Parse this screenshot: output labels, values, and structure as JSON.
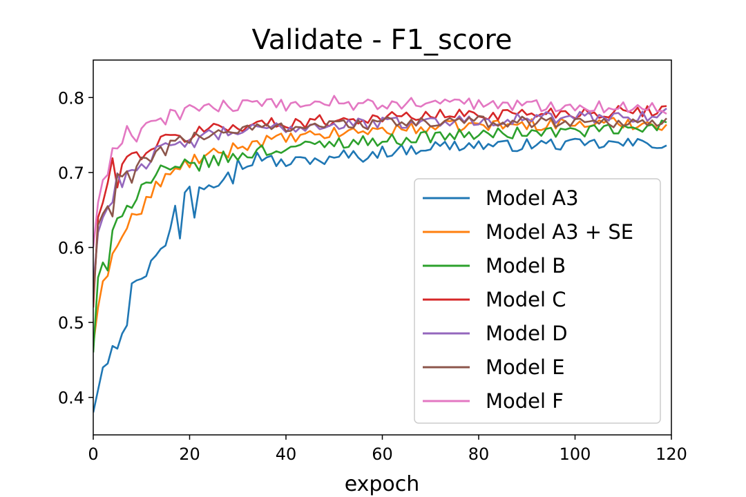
{
  "chart_data": {
    "type": "line",
    "title": "Validate - F1_score",
    "xlabel": "expoch",
    "ylabel": "",
    "xlim": [
      0,
      120
    ],
    "ylim": [
      0.35,
      0.85
    ],
    "xticks": [
      0,
      20,
      40,
      60,
      80,
      100,
      120
    ],
    "yticks": [
      0.4,
      0.5,
      0.6,
      0.7,
      0.8
    ],
    "grid": false,
    "legend_position": "center-right",
    "series": [
      {
        "name": "Model A3",
        "color": "#1f77b4",
        "keypoints": [
          [
            0,
            0.38
          ],
          [
            1,
            0.41
          ],
          [
            2,
            0.44
          ],
          [
            3,
            0.45
          ],
          [
            4,
            0.478
          ],
          [
            5,
            0.472
          ],
          [
            6,
            0.492
          ],
          [
            7,
            0.496
          ],
          [
            8,
            0.545
          ],
          [
            9,
            0.563
          ],
          [
            10,
            0.552
          ],
          [
            12,
            0.585
          ],
          [
            14,
            0.605
          ],
          [
            15,
            0.598
          ],
          [
            17,
            0.65
          ],
          [
            18,
            0.615
          ],
          [
            19,
            0.67
          ],
          [
            20,
            0.68
          ],
          [
            21,
            0.647
          ],
          [
            22,
            0.682
          ],
          [
            24,
            0.685
          ],
          [
            26,
            0.69
          ],
          [
            28,
            0.71
          ],
          [
            29,
            0.695
          ],
          [
            30,
            0.72
          ],
          [
            32,
            0.703
          ],
          [
            34,
            0.726
          ],
          [
            36,
            0.717
          ],
          [
            40,
            0.712
          ],
          [
            45,
            0.718
          ],
          [
            50,
            0.715
          ],
          [
            52,
            0.725
          ],
          [
            55,
            0.72
          ],
          [
            60,
            0.728
          ],
          [
            65,
            0.73
          ],
          [
            70,
            0.735
          ],
          [
            75,
            0.736
          ],
          [
            80,
            0.737
          ],
          [
            85,
            0.735
          ],
          [
            90,
            0.737
          ],
          [
            95,
            0.738
          ],
          [
            100,
            0.737
          ],
          [
            105,
            0.738
          ],
          [
            110,
            0.738
          ],
          [
            115,
            0.739
          ],
          [
            119,
            0.738
          ]
        ]
      },
      {
        "name": "Model A3 + SE",
        "color": "#ff7f0e",
        "keypoints": [
          [
            0,
            0.47
          ],
          [
            1,
            0.52
          ],
          [
            2,
            0.555
          ],
          [
            3,
            0.57
          ],
          [
            4,
            0.595
          ],
          [
            5,
            0.61
          ],
          [
            6,
            0.612
          ],
          [
            7,
            0.625
          ],
          [
            8,
            0.645
          ],
          [
            9,
            0.64
          ],
          [
            10,
            0.65
          ],
          [
            12,
            0.67
          ],
          [
            14,
            0.69
          ],
          [
            16,
            0.695
          ],
          [
            18,
            0.705
          ],
          [
            20,
            0.715
          ],
          [
            22,
            0.718
          ],
          [
            25,
            0.722
          ],
          [
            28,
            0.728
          ],
          [
            30,
            0.735
          ],
          [
            35,
            0.742
          ],
          [
            40,
            0.745
          ],
          [
            45,
            0.748
          ],
          [
            50,
            0.752
          ],
          [
            55,
            0.755
          ],
          [
            60,
            0.757
          ],
          [
            65,
            0.758
          ],
          [
            70,
            0.76
          ],
          [
            75,
            0.762
          ],
          [
            80,
            0.763
          ],
          [
            85,
            0.763
          ],
          [
            90,
            0.764
          ],
          [
            95,
            0.765
          ],
          [
            100,
            0.765
          ],
          [
            105,
            0.765
          ],
          [
            110,
            0.766
          ],
          [
            115,
            0.765
          ],
          [
            119,
            0.764
          ]
        ]
      },
      {
        "name": "Model B",
        "color": "#2ca02c",
        "keypoints": [
          [
            0,
            0.46
          ],
          [
            1,
            0.56
          ],
          [
            2,
            0.58
          ],
          [
            3,
            0.56
          ],
          [
            4,
            0.62
          ],
          [
            5,
            0.648
          ],
          [
            6,
            0.65
          ],
          [
            7,
            0.655
          ],
          [
            8,
            0.66
          ],
          [
            10,
            0.68
          ],
          [
            12,
            0.69
          ],
          [
            14,
            0.7
          ],
          [
            16,
            0.7
          ],
          [
            18,
            0.705
          ],
          [
            20,
            0.71
          ],
          [
            22,
            0.712
          ],
          [
            25,
            0.715
          ],
          [
            28,
            0.72
          ],
          [
            30,
            0.72
          ],
          [
            32,
            0.725
          ],
          [
            35,
            0.73
          ],
          [
            38,
            0.728
          ],
          [
            40,
            0.735
          ],
          [
            45,
            0.735
          ],
          [
            50,
            0.74
          ],
          [
            55,
            0.742
          ],
          [
            60,
            0.742
          ],
          [
            65,
            0.745
          ],
          [
            70,
            0.748
          ],
          [
            75,
            0.75
          ],
          [
            80,
            0.75
          ],
          [
            85,
            0.752
          ],
          [
            90,
            0.753
          ],
          [
            95,
            0.754
          ],
          [
            100,
            0.755
          ],
          [
            105,
            0.756
          ],
          [
            110,
            0.757
          ],
          [
            115,
            0.758
          ],
          [
            119,
            0.765
          ]
        ]
      },
      {
        "name": "Model C",
        "color": "#d62728",
        "keypoints": [
          [
            0,
            0.52
          ],
          [
            1,
            0.64
          ],
          [
            2,
            0.66
          ],
          [
            3,
            0.68
          ],
          [
            4,
            0.71
          ],
          [
            5,
            0.69
          ],
          [
            6,
            0.71
          ],
          [
            7,
            0.72
          ],
          [
            8,
            0.72
          ],
          [
            10,
            0.725
          ],
          [
            12,
            0.735
          ],
          [
            14,
            0.74
          ],
          [
            16,
            0.745
          ],
          [
            18,
            0.745
          ],
          [
            20,
            0.75
          ],
          [
            22,
            0.755
          ],
          [
            25,
            0.76
          ],
          [
            28,
            0.76
          ],
          [
            30,
            0.762
          ],
          [
            35,
            0.765
          ],
          [
            40,
            0.766
          ],
          [
            45,
            0.768
          ],
          [
            50,
            0.77
          ],
          [
            55,
            0.772
          ],
          [
            60,
            0.773
          ],
          [
            65,
            0.775
          ],
          [
            70,
            0.776
          ],
          [
            75,
            0.777
          ],
          [
            80,
            0.778
          ],
          [
            85,
            0.778
          ],
          [
            90,
            0.779
          ],
          [
            95,
            0.78
          ],
          [
            100,
            0.78
          ],
          [
            105,
            0.78
          ],
          [
            110,
            0.781
          ],
          [
            115,
            0.782
          ],
          [
            119,
            0.785
          ]
        ]
      },
      {
        "name": "Model D",
        "color": "#9467bd",
        "keypoints": [
          [
            0,
            0.55
          ],
          [
            1,
            0.62
          ],
          [
            2,
            0.64
          ],
          [
            3,
            0.65
          ],
          [
            4,
            0.665
          ],
          [
            5,
            0.69
          ],
          [
            6,
            0.69
          ],
          [
            7,
            0.7
          ],
          [
            8,
            0.705
          ],
          [
            10,
            0.71
          ],
          [
            12,
            0.72
          ],
          [
            14,
            0.73
          ],
          [
            16,
            0.73
          ],
          [
            18,
            0.735
          ],
          [
            20,
            0.74
          ],
          [
            22,
            0.745
          ],
          [
            25,
            0.75
          ],
          [
            28,
            0.752
          ],
          [
            30,
            0.755
          ],
          [
            35,
            0.758
          ],
          [
            40,
            0.76
          ],
          [
            45,
            0.762
          ],
          [
            50,
            0.764
          ],
          [
            55,
            0.765
          ],
          [
            60,
            0.766
          ],
          [
            65,
            0.767
          ],
          [
            70,
            0.768
          ],
          [
            75,
            0.769
          ],
          [
            80,
            0.77
          ],
          [
            85,
            0.771
          ],
          [
            90,
            0.772
          ],
          [
            95,
            0.773
          ],
          [
            100,
            0.773
          ],
          [
            105,
            0.774
          ],
          [
            110,
            0.775
          ],
          [
            115,
            0.776
          ],
          [
            119,
            0.78
          ]
        ]
      },
      {
        "name": "Model E",
        "color": "#8c564b",
        "keypoints": [
          [
            0,
            0.53
          ],
          [
            1,
            0.63
          ],
          [
            2,
            0.645
          ],
          [
            3,
            0.655
          ],
          [
            4,
            0.64
          ],
          [
            5,
            0.69
          ],
          [
            6,
            0.695
          ],
          [
            7,
            0.7
          ],
          [
            8,
            0.695
          ],
          [
            10,
            0.71
          ],
          [
            12,
            0.72
          ],
          [
            14,
            0.73
          ],
          [
            16,
            0.735
          ],
          [
            18,
            0.74
          ],
          [
            20,
            0.745
          ],
          [
            22,
            0.75
          ],
          [
            25,
            0.752
          ],
          [
            28,
            0.755
          ],
          [
            30,
            0.757
          ],
          [
            35,
            0.76
          ],
          [
            40,
            0.762
          ],
          [
            45,
            0.763
          ],
          [
            50,
            0.764
          ],
          [
            55,
            0.765
          ],
          [
            60,
            0.766
          ],
          [
            65,
            0.766
          ],
          [
            70,
            0.767
          ],
          [
            75,
            0.767
          ],
          [
            80,
            0.768
          ],
          [
            85,
            0.768
          ],
          [
            90,
            0.768
          ],
          [
            95,
            0.768
          ],
          [
            100,
            0.768
          ],
          [
            105,
            0.768
          ],
          [
            110,
            0.768
          ],
          [
            115,
            0.768
          ],
          [
            119,
            0.765
          ]
        ]
      },
      {
        "name": "Model F",
        "color": "#e377c2",
        "keypoints": [
          [
            0,
            0.6
          ],
          [
            1,
            0.66
          ],
          [
            2,
            0.69
          ],
          [
            3,
            0.7
          ],
          [
            4,
            0.725
          ],
          [
            5,
            0.725
          ],
          [
            6,
            0.73
          ],
          [
            7,
            0.76
          ],
          [
            8,
            0.745
          ],
          [
            9,
            0.745
          ],
          [
            10,
            0.76
          ],
          [
            12,
            0.775
          ],
          [
            14,
            0.77
          ],
          [
            16,
            0.775
          ],
          [
            18,
            0.78
          ],
          [
            20,
            0.785
          ],
          [
            22,
            0.788
          ],
          [
            25,
            0.788
          ],
          [
            28,
            0.787
          ],
          [
            30,
            0.788
          ],
          [
            35,
            0.79
          ],
          [
            40,
            0.79
          ],
          [
            45,
            0.792
          ],
          [
            50,
            0.795
          ],
          [
            55,
            0.79
          ],
          [
            60,
            0.79
          ],
          [
            65,
            0.792
          ],
          [
            70,
            0.793
          ],
          [
            75,
            0.793
          ],
          [
            80,
            0.792
          ],
          [
            85,
            0.79
          ],
          [
            90,
            0.79
          ],
          [
            95,
            0.789
          ],
          [
            100,
            0.79
          ],
          [
            105,
            0.788
          ],
          [
            110,
            0.787
          ],
          [
            115,
            0.786
          ],
          [
            119,
            0.785
          ]
        ]
      }
    ]
  }
}
